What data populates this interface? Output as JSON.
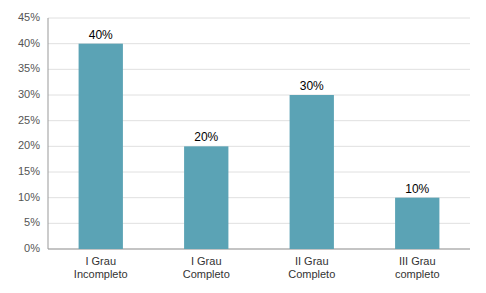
{
  "chart_data": {
    "type": "bar",
    "categories": [
      "I Grau\nIncompleto",
      "I Grau\nCompleto",
      "II Grau\nCompleto",
      "III Grau\ncompleto"
    ],
    "values": [
      0.4,
      0.2,
      0.3,
      0.1
    ],
    "value_labels": [
      "40%",
      "20%",
      "30%",
      "10%"
    ],
    "data_labels": true,
    "color": "#5ba3b5",
    "ylim": [
      0,
      0.45
    ],
    "yticks": [
      {
        "value": 0.0,
        "label": "0%"
      },
      {
        "value": 0.05,
        "label": "5%"
      },
      {
        "value": 0.1,
        "label": "10%"
      },
      {
        "value": 0.15,
        "label": "15%"
      },
      {
        "value": 0.2,
        "label": "20%"
      },
      {
        "value": 0.25,
        "label": "25%"
      },
      {
        "value": 0.3,
        "label": "30%"
      },
      {
        "value": 0.35,
        "label": "35%"
      },
      {
        "value": 0.4,
        "label": "40%"
      },
      {
        "value": 0.45,
        "label": "45%"
      }
    ],
    "grid": true
  }
}
